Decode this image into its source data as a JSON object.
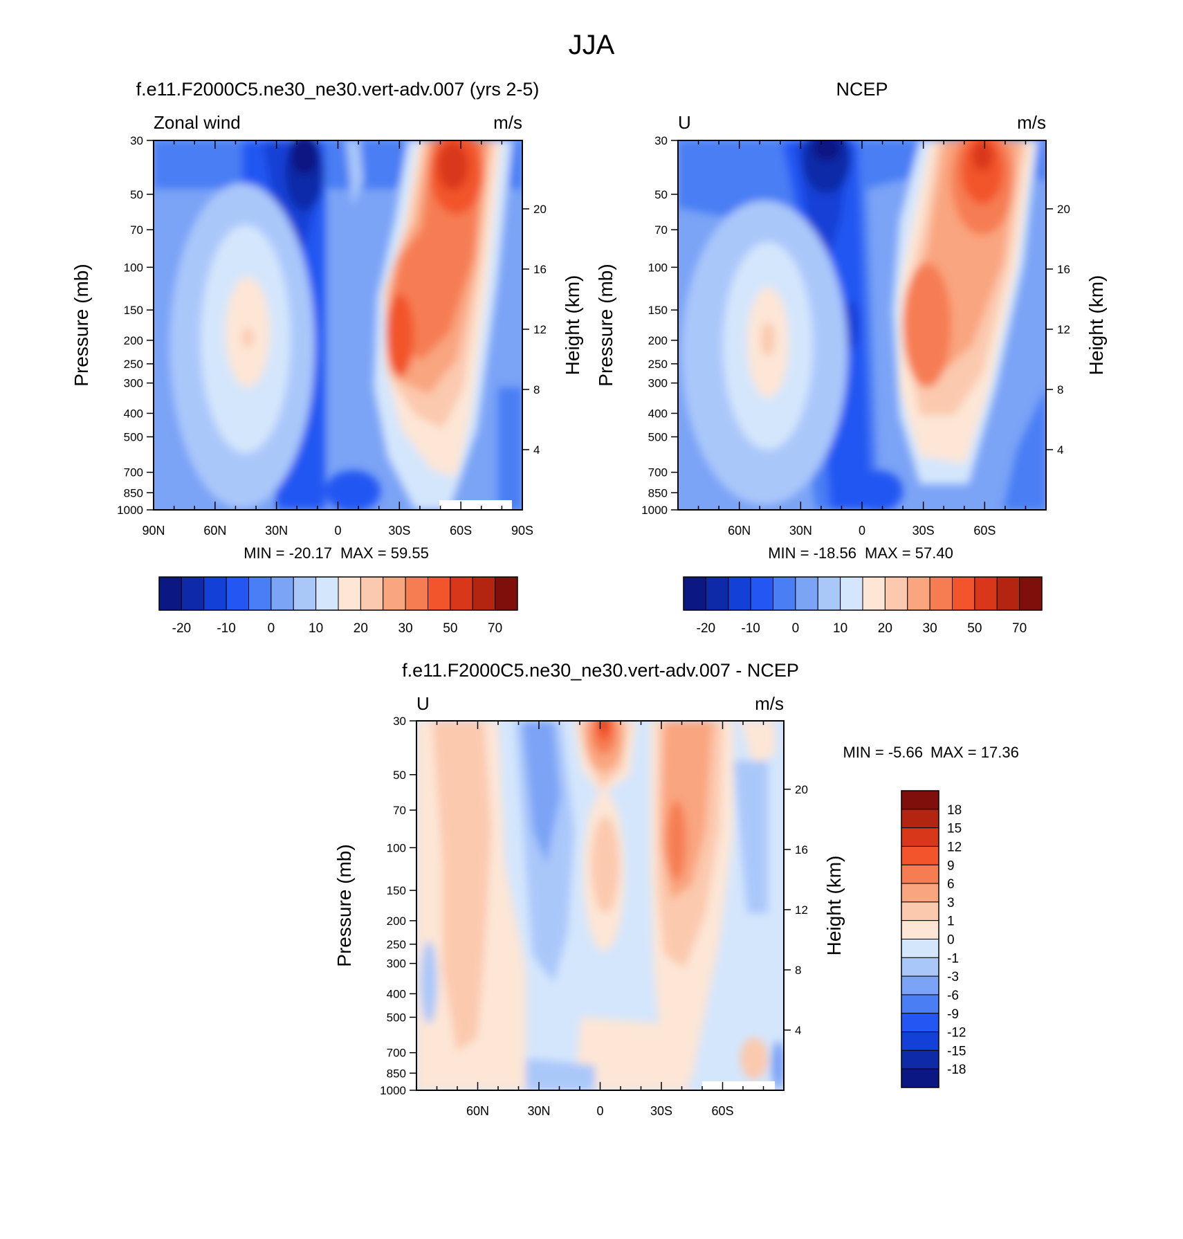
{
  "figure": {
    "title": "JJA"
  },
  "chart_data": [
    {
      "type": "heatmap",
      "id": "model",
      "title": "f.e11.F2000C5.ne30_ne30.vert-adv.007 (yrs 2-5)",
      "left_string": "Zonal wind",
      "units": "m/s",
      "ylabel": "Pressure (mb)",
      "y2label": "Height (km)",
      "x_ticks": [
        "90N",
        "60N",
        "30N",
        "0",
        "30S",
        "60S",
        "90S"
      ],
      "y_ticks": [
        "30",
        "50",
        "70",
        "100",
        "150",
        "200",
        "250",
        "300",
        "400",
        "500",
        "700",
        "850",
        "1000"
      ],
      "y2_ticks": [
        "20",
        "16",
        "12",
        "8",
        "4"
      ],
      "ylim": [
        1000,
        30
      ],
      "xlim": [
        90,
        -90
      ],
      "min_label": "MIN = -20.17",
      "max_label": "MAX =  59.55",
      "min": -20.17,
      "max": 59.55
    },
    {
      "type": "heatmap",
      "id": "obs",
      "title": "NCEP",
      "left_string": "U",
      "units": "m/s",
      "ylabel": "Pressure (mb)",
      "y2label": "Height (km)",
      "x_ticks": [
        "60N",
        "30N",
        "0",
        "30S",
        "60S"
      ],
      "y_ticks": [
        "30",
        "50",
        "70",
        "100",
        "150",
        "200",
        "250",
        "300",
        "400",
        "500",
        "700",
        "850",
        "1000"
      ],
      "y2_ticks": [
        "20",
        "16",
        "12",
        "8",
        "4"
      ],
      "ylim": [
        1000,
        30
      ],
      "min_label": "MIN = -18.56",
      "max_label": "MAX =  57.40",
      "min": -18.56,
      "max": 57.4
    },
    {
      "type": "heatmap",
      "id": "diff",
      "title": "f.e11.F2000C5.ne30_ne30.vert-adv.007 - NCEP",
      "left_string": "U",
      "units": "m/s",
      "ylabel": "Pressure (mb)",
      "y2label": "Height (km)",
      "x_ticks": [
        "60N",
        "30N",
        "0",
        "30S",
        "60S"
      ],
      "y_ticks": [
        "30",
        "50",
        "70",
        "100",
        "150",
        "200",
        "250",
        "300",
        "400",
        "500",
        "700",
        "850",
        "1000"
      ],
      "y2_ticks": [
        "20",
        "16",
        "12",
        "8",
        "4"
      ],
      "ylim": [
        1000,
        30
      ],
      "min_label": "MIN =  -5.66",
      "max_label": "MAX =  17.36",
      "min": -5.66,
      "max": 17.36
    }
  ],
  "colorbars": {
    "abs": {
      "colors": [
        "#0b1782",
        "#0e2aa8",
        "#1340d6",
        "#2356f2",
        "#4a7ef4",
        "#7ba3f6",
        "#aac7fa",
        "#d4e6fc",
        "#fde6d6",
        "#fbc9ae",
        "#f9a57f",
        "#f67d52",
        "#f2542c",
        "#d9371a",
        "#b32411",
        "#7e0f0a"
      ],
      "labels": [
        "-20",
        "-10",
        "0",
        "10",
        "20",
        "30",
        "50",
        "70"
      ]
    },
    "diff": {
      "colors": [
        "#7e0f0a",
        "#b32411",
        "#d9371a",
        "#f2542c",
        "#f67d52",
        "#f9a57f",
        "#fbc9ae",
        "#fde6d6",
        "#d4e6fc",
        "#aac7fa",
        "#7ba3f6",
        "#4a7ef4",
        "#2356f2",
        "#1340d6",
        "#0e2aa8",
        "#0b1782"
      ],
      "labels": [
        "18",
        "15",
        "12",
        "9",
        "6",
        "3",
        "1",
        "0",
        "-1",
        "-3",
        "-6",
        "-9",
        "-12",
        "-15",
        "-18"
      ]
    }
  }
}
